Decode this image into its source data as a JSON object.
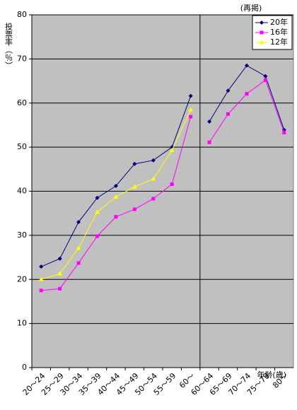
{
  "chart_data": [
    {
      "type": "line",
      "ylabel": "投票率（％）",
      "xlabel": "年齢(歳)",
      "categories": [
        "20～24",
        "25～29",
        "30～34",
        "35～39",
        "40～44",
        "45～49",
        "50～54",
        "55～59",
        "60～"
      ],
      "series": [
        {
          "name": "20年",
          "color": "#000080",
          "marker": "diamond",
          "values": [
            22.9,
            24.7,
            33.0,
            38.5,
            41.2,
            46.2,
            47.0,
            50.0,
            61.6
          ]
        },
        {
          "name": "16年",
          "color": "#ff00ff",
          "marker": "square",
          "values": [
            17.5,
            17.9,
            23.7,
            29.8,
            34.2,
            35.9,
            38.3,
            41.6,
            56.9
          ]
        },
        {
          "name": "12年",
          "color": "#ffff00",
          "marker": "triangle",
          "values": [
            20.0,
            21.3,
            27.1,
            35.3,
            38.7,
            41.0,
            42.8,
            49.3,
            58.5
          ]
        }
      ],
      "ylim": [
        0,
        80
      ],
      "yticks": [
        0,
        10,
        20,
        30,
        40,
        50,
        60,
        70,
        80
      ],
      "grid": true,
      "legend": "upper right"
    },
    {
      "type": "line",
      "annotation": "(再掲)",
      "categories": [
        "60～64",
        "65～69",
        "70～74",
        "75～79",
        "80～"
      ],
      "series": [
        {
          "color": "#000080",
          "marker": "diamond",
          "values": [
            55.8,
            62.8,
            68.5,
            66.1,
            53.9
          ]
        },
        {
          "color": "#ff00ff",
          "marker": "square",
          "values": [
            51.1,
            57.5,
            62.1,
            65.2,
            53.3
          ]
        }
      ],
      "ylim": [
        0,
        80
      ]
    }
  ]
}
